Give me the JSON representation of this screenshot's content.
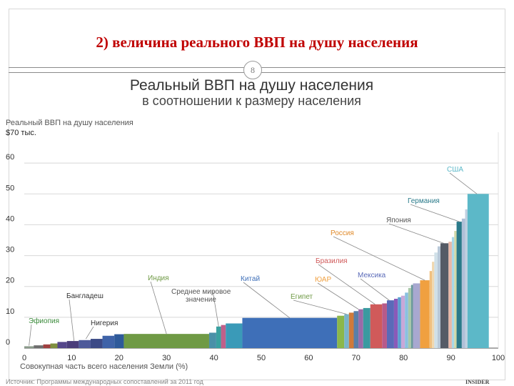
{
  "slide": {
    "title": "2) величина реального ВВП на душу населения",
    "page_number": "8"
  },
  "colors": {
    "title": "#c00000",
    "axis": "#333333"
  },
  "chart_data": {
    "type": "bar",
    "title": "Реальный ВВП на душу населения",
    "subtitle": "в соотношении к размеру населения",
    "ylabel": "Реальный ВВП на душу населения",
    "yunit": "$70 тыс.",
    "xlabel": "Совокупная часть всего населения Земли (%)",
    "xlim": [
      0,
      100
    ],
    "ylim": [
      0,
      70
    ],
    "x_ticks": [
      "0",
      "10",
      "20",
      "30",
      "40",
      "50",
      "60",
      "70",
      "80",
      "90",
      "100"
    ],
    "y_ticks": [
      "0",
      "10",
      "20",
      "30",
      "40",
      "50",
      "60"
    ],
    "grid": true,
    "bars": [
      {
        "x0": 0.0,
        "x1": 2.0,
        "y": 0.6,
        "color": "#8a9a8a"
      },
      {
        "x0": 2.0,
        "x1": 4.0,
        "y": 0.9,
        "color": "#6e6e6e"
      },
      {
        "x0": 4.0,
        "x1": 5.5,
        "y": 1.2,
        "color": "#a04040"
      },
      {
        "x0": 5.5,
        "x1": 7.0,
        "y": 1.5,
        "color": "#7f8f3f"
      },
      {
        "x0": 7.0,
        "x1": 9.0,
        "y": 2.0,
        "color": "#54468a"
      },
      {
        "x0": 9.0,
        "x1": 11.5,
        "y": 2.3,
        "color": "#4a3d7a"
      },
      {
        "x0": 11.5,
        "x1": 14.0,
        "y": 2.6,
        "color": "#4e5a9a"
      },
      {
        "x0": 14.0,
        "x1": 16.5,
        "y": 3.0,
        "color": "#3c4a86"
      },
      {
        "x0": 16.5,
        "x1": 19.0,
        "y": 4.0,
        "color": "#3f63a8"
      },
      {
        "x0": 19.0,
        "x1": 21.0,
        "y": 4.5,
        "color": "#2e5a9a"
      },
      {
        "x0": 21.0,
        "x1": 39.0,
        "y": 4.6,
        "color": "#6f9a45"
      },
      {
        "x0": 39.0,
        "x1": 40.5,
        "y": 5.0,
        "color": "#4a90a8"
      },
      {
        "x0": 40.5,
        "x1": 41.5,
        "y": 7.0,
        "color": "#3aa0a0"
      },
      {
        "x0": 41.5,
        "x1": 42.5,
        "y": 7.5,
        "color": "#c0608a"
      },
      {
        "x0": 42.5,
        "x1": 46.0,
        "y": 8.0,
        "color": "#3a9ab8"
      },
      {
        "x0": 46.0,
        "x1": 66.0,
        "y": 9.8,
        "color": "#3e6fb8"
      },
      {
        "x0": 66.0,
        "x1": 67.5,
        "y": 10.5,
        "color": "#8bb74a"
      },
      {
        "x0": 67.5,
        "x1": 68.5,
        "y": 11.0,
        "color": "#7ab4c8"
      },
      {
        "x0": 68.5,
        "x1": 69.5,
        "y": 11.5,
        "color": "#d07a3a"
      },
      {
        "x0": 69.5,
        "x1": 70.5,
        "y": 12.0,
        "color": "#5a7fa8"
      },
      {
        "x0": 70.5,
        "x1": 71.5,
        "y": 12.6,
        "color": "#9b6aa8"
      },
      {
        "x0": 71.5,
        "x1": 73.0,
        "y": 13.0,
        "color": "#3a9aa0"
      },
      {
        "x0": 73.0,
        "x1": 75.5,
        "y": 14.2,
        "color": "#d05a5a"
      },
      {
        "x0": 75.5,
        "x1": 76.5,
        "y": 14.5,
        "color": "#b85a8a"
      },
      {
        "x0": 76.5,
        "x1": 78.0,
        "y": 15.5,
        "color": "#5a6ab8"
      },
      {
        "x0": 78.0,
        "x1": 78.8,
        "y": 16.0,
        "color": "#8a5ab8"
      },
      {
        "x0": 78.8,
        "x1": 79.5,
        "y": 16.5,
        "color": "#5aa0d0"
      },
      {
        "x0": 79.5,
        "x1": 80.3,
        "y": 17.0,
        "color": "#c8a8d8"
      },
      {
        "x0": 80.3,
        "x1": 81.0,
        "y": 18.0,
        "color": "#8ac0e0"
      },
      {
        "x0": 81.0,
        "x1": 81.6,
        "y": 19.5,
        "color": "#a8c8a8"
      },
      {
        "x0": 81.6,
        "x1": 82.0,
        "y": 20.5,
        "color": "#6a9a9a"
      },
      {
        "x0": 82.0,
        "x1": 83.5,
        "y": 21.0,
        "color": "#a8a8d0"
      },
      {
        "x0": 83.5,
        "x1": 85.5,
        "y": 22.0,
        "color": "#f0a040"
      },
      {
        "x0": 85.5,
        "x1": 86.0,
        "y": 25.0,
        "color": "#f0c080"
      },
      {
        "x0": 86.0,
        "x1": 86.5,
        "y": 28.0,
        "color": "#f0d8b0"
      },
      {
        "x0": 86.5,
        "x1": 87.2,
        "y": 31.0,
        "color": "#d0e0e8"
      },
      {
        "x0": 87.2,
        "x1": 87.8,
        "y": 33.0,
        "color": "#b8c8d8"
      },
      {
        "x0": 87.8,
        "x1": 89.5,
        "y": 34.0,
        "color": "#555b66"
      },
      {
        "x0": 89.5,
        "x1": 90.2,
        "y": 34.5,
        "color": "#e8b8a8"
      },
      {
        "x0": 90.2,
        "x1": 90.7,
        "y": 36.0,
        "color": "#a8d8e8"
      },
      {
        "x0": 90.7,
        "x1": 91.2,
        "y": 38.0,
        "color": "#d0d8a8"
      },
      {
        "x0": 91.2,
        "x1": 92.3,
        "y": 41.0,
        "color": "#2a7a8a"
      },
      {
        "x0": 92.3,
        "x1": 93.0,
        "y": 42.0,
        "color": "#b0c0d8"
      },
      {
        "x0": 93.0,
        "x1": 93.5,
        "y": 45.0,
        "color": "#c0d0e0"
      },
      {
        "x0": 93.5,
        "x1": 98.0,
        "y": 50.0,
        "color": "#5cb8c8"
      }
    ],
    "annotations": [
      {
        "label": "Эфиопия",
        "color": "#3a8a3a",
        "x": 1.0,
        "y": 0.8
      },
      {
        "label": "Бангладеш",
        "color": "#333333",
        "x": 10.5,
        "y": 2.3
      },
      {
        "label": "Нигерия",
        "color": "#333333",
        "x": 13.0,
        "y": 3.0
      },
      {
        "label": "Индия",
        "color": "#6f9a45",
        "x": 30.0,
        "y": 4.6
      },
      {
        "label": "Среднее мировое значение",
        "color": "#555555",
        "x": 41.0,
        "y": 7.0
      },
      {
        "label": "Китай",
        "color": "#3e6fb8",
        "x": 56.0,
        "y": 9.8
      },
      {
        "label": "Египет",
        "color": "#6f9a45",
        "x": 68.0,
        "y": 11.0
      },
      {
        "label": "ЮАР",
        "color": "#f0a040",
        "x": 70.5,
        "y": 12.6
      },
      {
        "label": "Бразилия",
        "color": "#d05a5a",
        "x": 74.0,
        "y": 14.2
      },
      {
        "label": "Мексика",
        "color": "#5a6ab8",
        "x": 77.0,
        "y": 15.5
      },
      {
        "label": "Россия",
        "color": "#e08a2a",
        "x": 84.5,
        "y": 22.0
      },
      {
        "label": "Япония",
        "color": "#555555",
        "x": 88.5,
        "y": 34.0
      },
      {
        "label": "Германия",
        "color": "#2a7a8a",
        "x": 91.8,
        "y": 41.0
      },
      {
        "label": "США",
        "color": "#5cb8c8",
        "x": 95.5,
        "y": 50.0
      }
    ]
  },
  "footer": {
    "source": "Источник: Программы международных сопоставлений за 2011 год",
    "brand": "INSIDER"
  }
}
